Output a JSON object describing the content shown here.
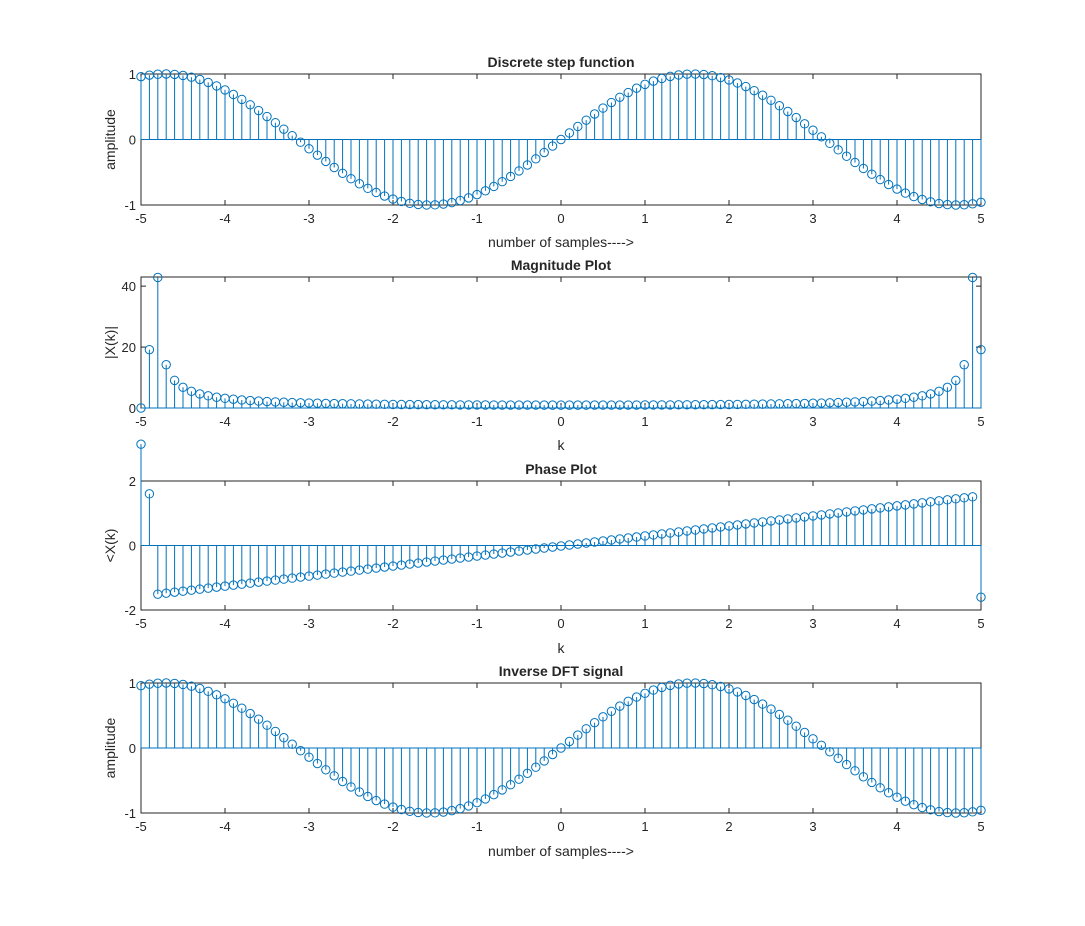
{
  "figure": {
    "background": "#ffffff",
    "marker_color": "#0072BD",
    "axis_color": "#262626"
  },
  "chart_data": [
    {
      "type": "stem",
      "title": "Discrete step function",
      "xlabel": "number of samples---->",
      "ylabel": "amplitude",
      "xlim": [
        -5,
        5
      ],
      "ylim": [
        -1,
        1
      ],
      "xticks": [
        "-5",
        "-4",
        "-3",
        "-2",
        "-1",
        "0",
        "1",
        "2",
        "3",
        "4",
        "5"
      ],
      "yticks": [
        "-1",
        "0",
        "1"
      ],
      "series": [
        {
          "function": "y = sin(x)",
          "x_start": -5,
          "x_end": 5,
          "x_step": 0.1
        }
      ]
    },
    {
      "type": "stem",
      "title": "Magnitude Plot",
      "xlabel": "k",
      "ylabel": "|X(k)|",
      "xlim": [
        -5,
        5
      ],
      "ylim": [
        0,
        43
      ],
      "xticks": [
        "-5",
        "-4",
        "-3",
        "-2",
        "-1",
        "0",
        "1",
        "2",
        "3",
        "4",
        "5"
      ],
      "yticks": [
        "0",
        "20",
        "40"
      ],
      "series": [
        {
          "function": "|X(k)|, 101-point DFT of sin(x)",
          "x_start": -5,
          "x_end": 5,
          "x_step": 0.1
        }
      ]
    },
    {
      "type": "stem",
      "title": "Phase Plot",
      "xlabel": "k",
      "ylabel": "<X(k)",
      "xlim": [
        -5,
        5
      ],
      "ylim": [
        -2,
        2
      ],
      "xticks": [
        "-5",
        "-4",
        "-3",
        "-2",
        "-1",
        "0",
        "1",
        "2",
        "3",
        "4",
        "5"
      ],
      "yticks": [
        "-2",
        "0",
        "2"
      ],
      "series": [
        {
          "function": "angle X(k), 101-point DFT of sin(x)",
          "x_start": -5,
          "x_end": 5,
          "x_step": 0.1
        }
      ]
    },
    {
      "type": "stem",
      "title": "Inverse DFT signal",
      "xlabel": "number of samples---->",
      "ylabel": "amplitude",
      "xlim": [
        -5,
        5
      ],
      "ylim": [
        -1,
        1
      ],
      "xticks": [
        "-5",
        "-4",
        "-3",
        "-2",
        "-1",
        "0",
        "1",
        "2",
        "3",
        "4",
        "5"
      ],
      "yticks": [
        "-1",
        "0",
        "1"
      ],
      "series": [
        {
          "function": "y = real(ifft(X(k)))",
          "x_start": -5,
          "x_end": 5,
          "x_step": 0.1
        }
      ]
    }
  ]
}
